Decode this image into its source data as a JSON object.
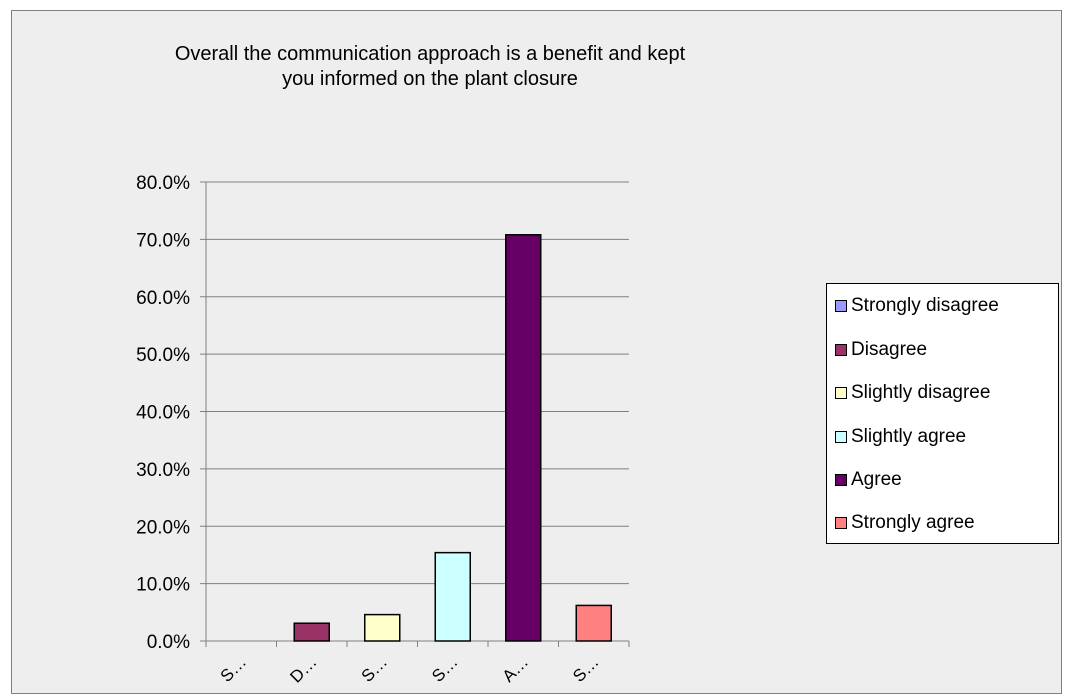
{
  "chart_data": {
    "type": "bar",
    "title": "Overall the communication approach is a benefit and kept you informed on the plant closure",
    "title_lines": [
      "Overall the communication approach is a benefit and kept",
      "you informed on the plant closure"
    ],
    "categories": [
      "Strongly disagree",
      "Disagree",
      "Slightly disagree",
      "Slightly agree",
      "Agree",
      "Strongly agree"
    ],
    "category_tick_labels": [
      "S…",
      "D…",
      "S…",
      "S…",
      "A…",
      "S…"
    ],
    "values": [
      0.0,
      3.1,
      4.6,
      15.4,
      70.8,
      6.2
    ],
    "colors": [
      "#9999ff",
      "#993366",
      "#ffffcc",
      "#ccffff",
      "#660066",
      "#ff8080"
    ],
    "ylim": [
      0,
      80
    ],
    "y_ticks": [
      0,
      10,
      20,
      30,
      40,
      50,
      60,
      70,
      80
    ],
    "y_tick_labels": [
      "0.0%",
      "10.0%",
      "20.0%",
      "30.0%",
      "40.0%",
      "50.0%",
      "60.0%",
      "70.0%",
      "80.0%"
    ],
    "xlabel": "",
    "ylabel": "",
    "grid": true,
    "legend_position": "right",
    "background": "#eeeeee"
  }
}
